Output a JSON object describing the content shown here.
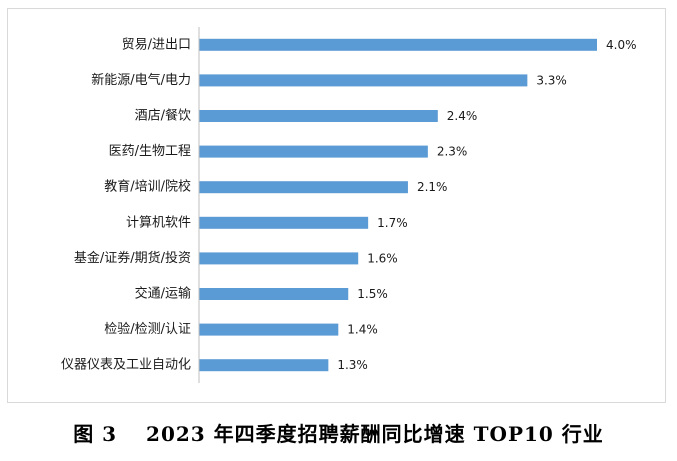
{
  "chart_data": {
    "type": "bar",
    "orientation": "horizontal",
    "categories": [
      "贸易/进出口",
      "新能源/电气/电力",
      "酒店/餐饮",
      "医药/生物工程",
      "教育/培训/院校",
      "计算机软件",
      "基金/证券/期货/投资",
      "交通/运输",
      "检验/检测/认证",
      "仪器仪表及工业自动化"
    ],
    "values": [
      4.0,
      3.3,
      2.4,
      2.3,
      2.1,
      1.7,
      1.6,
      1.5,
      1.4,
      1.3
    ],
    "value_labels": [
      "4.0%",
      "3.3%",
      "2.4%",
      "2.3%",
      "2.1%",
      "1.7%",
      "1.6%",
      "1.5%",
      "1.4%",
      "1.3%"
    ],
    "xlim": [
      0,
      4.0
    ],
    "grid": false,
    "legend": "none",
    "bar_color": "#5b9bd5"
  },
  "caption": "图 3　 2023 年四季度招聘薪酬同比增速 TOP10 行业"
}
